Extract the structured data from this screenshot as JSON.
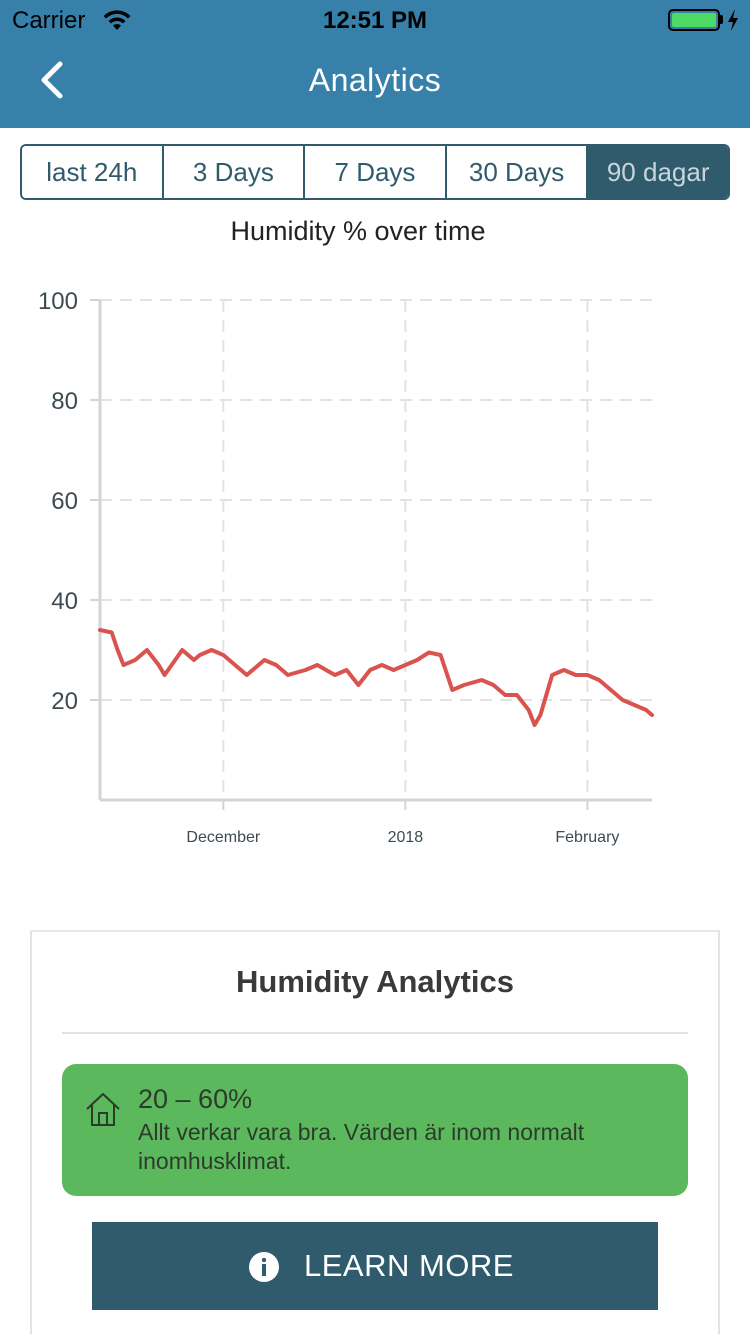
{
  "status_bar": {
    "carrier": "Carrier",
    "time": "12:51 PM"
  },
  "nav": {
    "title": "Analytics",
    "back_icon": "chevron-left-icon"
  },
  "tabs": [
    {
      "label": "last 24h",
      "active": false
    },
    {
      "label": "3 Days",
      "active": false
    },
    {
      "label": "7 Days",
      "active": false
    },
    {
      "label": "30 Days",
      "active": false
    },
    {
      "label": "90 dagar",
      "active": true
    }
  ],
  "chart_data": {
    "type": "line",
    "title": "Humidity % over time",
    "xlabel": "",
    "ylabel": "",
    "ylim": [
      0,
      100
    ],
    "yticks": [
      20,
      40,
      60,
      80,
      100
    ],
    "x_range": [
      "2017-11-10",
      "2018-02-12"
    ],
    "xticks": [
      {
        "date": "2017-12-01",
        "label": "December"
      },
      {
        "date": "2018-01-01",
        "label": "2018"
      },
      {
        "date": "2018-02-01",
        "label": "February"
      }
    ],
    "grid": true,
    "series": [
      {
        "color": "#d9534f",
        "x": [
          "2017-11-10",
          "2017-11-12",
          "2017-11-13",
          "2017-11-14",
          "2017-11-16",
          "2017-11-18",
          "2017-11-20",
          "2017-11-21",
          "2017-11-24",
          "2017-11-26",
          "2017-11-27",
          "2017-11-29",
          "2017-12-01",
          "2017-12-03",
          "2017-12-05",
          "2017-12-08",
          "2017-12-10",
          "2017-12-12",
          "2017-12-15",
          "2017-12-17",
          "2017-12-20",
          "2017-12-22",
          "2017-12-24",
          "2017-12-26",
          "2017-12-28",
          "2017-12-30",
          "2018-01-01",
          "2018-01-03",
          "2018-01-05",
          "2018-01-07",
          "2018-01-09",
          "2018-01-11",
          "2018-01-14",
          "2018-01-16",
          "2018-01-18",
          "2018-01-20",
          "2018-01-22",
          "2018-01-23",
          "2018-01-24",
          "2018-01-26",
          "2018-01-28",
          "2018-01-30",
          "2018-02-01",
          "2018-02-03",
          "2018-02-05",
          "2018-02-07",
          "2018-02-09",
          "2018-02-11",
          "2018-02-12"
        ],
        "values": [
          34,
          33.5,
          30,
          27,
          28,
          30,
          27,
          25,
          30,
          28,
          29,
          30,
          29,
          27,
          25,
          28,
          27,
          25,
          26,
          27,
          25,
          26,
          23,
          26,
          27,
          26,
          27,
          28,
          29.5,
          29,
          22,
          23,
          24,
          23,
          21,
          21,
          18,
          15,
          17,
          25,
          26,
          25,
          25,
          24,
          22,
          20,
          19,
          18,
          17
        ]
      }
    ]
  },
  "card": {
    "title": "Humidity Analytics",
    "range_icon": "home-icon",
    "range_value": "20 – 60%",
    "range_text": "Allt verkar vara bra. Värden är inom normalt inomhusklimat.",
    "button_icon": "info-icon",
    "button_label": "LEARN MORE"
  }
}
